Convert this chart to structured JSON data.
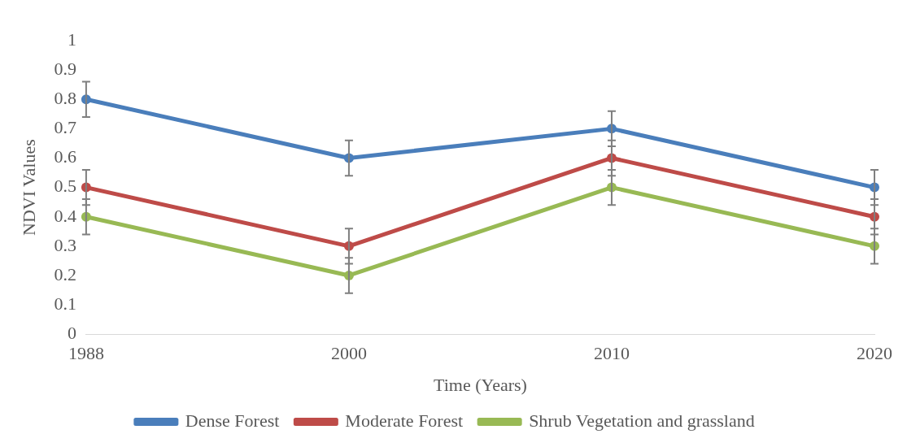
{
  "chart_data": {
    "type": "line",
    "xlabel": "Time (Years)",
    "ylabel": "NDVI Values",
    "categories": [
      "1988",
      "2000",
      "2010",
      "2020"
    ],
    "series": [
      {
        "name": "Dense Forest",
        "color": "#4a7ebb",
        "values": [
          0.8,
          0.6,
          0.7,
          0.5
        ],
        "errors": [
          0.06,
          0.06,
          0.06,
          0.06
        ]
      },
      {
        "name": "Moderate Forest",
        "color": "#be4b48",
        "values": [
          0.5,
          0.3,
          0.6,
          0.4
        ],
        "errors": [
          0.06,
          0.06,
          0.06,
          0.06
        ]
      },
      {
        "name": "Shrub Vegetation and grassland",
        "color": "#98b954",
        "values": [
          0.4,
          0.2,
          0.5,
          0.3
        ],
        "errors": [
          0.06,
          0.06,
          0.06,
          0.06
        ]
      }
    ],
    "ylim": [
      0,
      1
    ],
    "yticks": [
      0,
      0.1,
      0.2,
      0.3,
      0.4,
      0.5,
      0.6,
      0.7,
      0.8,
      0.9,
      1
    ],
    "grid": false,
    "legend": "bottom",
    "marker": "circle",
    "line_style": "solid"
  }
}
